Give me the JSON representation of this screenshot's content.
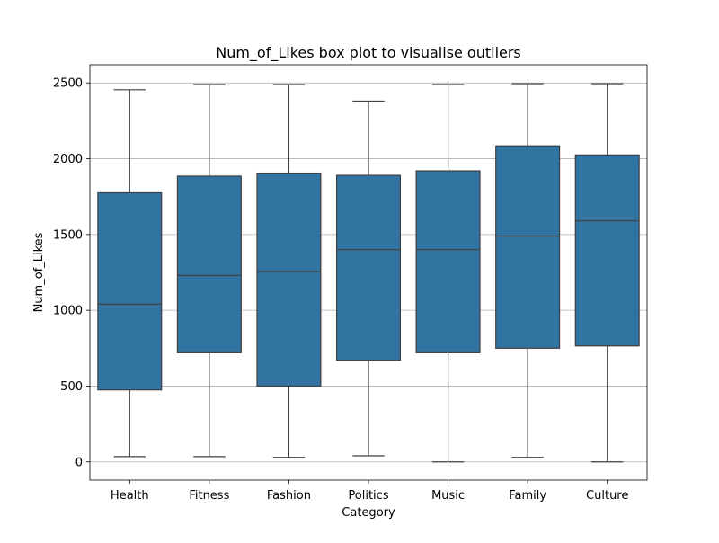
{
  "chart_data": {
    "type": "box",
    "title": "Num_of_Likes box plot to visualise outliers",
    "xlabel": "Category",
    "ylabel": "Num_of_Likes",
    "ylim": [
      -120,
      2620
    ],
    "yticks": [
      0,
      500,
      1000,
      1500,
      2000,
      2500
    ],
    "grid": "horizontal",
    "box_color": "#3274a1",
    "edge_color": "#3f3f3f",
    "grid_color": "#b0b0b0",
    "categories": [
      "Health",
      "Fitness",
      "Fashion",
      "Politics",
      "Music",
      "Family",
      "Culture"
    ],
    "boxes": [
      {
        "category": "Health",
        "whisker_low": 35,
        "q1": 475,
        "median": 1040,
        "q3": 1775,
        "whisker_high": 2455
      },
      {
        "category": "Fitness",
        "whisker_low": 35,
        "q1": 720,
        "median": 1230,
        "q3": 1885,
        "whisker_high": 2490
      },
      {
        "category": "Fashion",
        "whisker_low": 30,
        "q1": 500,
        "median": 1255,
        "q3": 1905,
        "whisker_high": 2490
      },
      {
        "category": "Politics",
        "whisker_low": 40,
        "q1": 670,
        "median": 1400,
        "q3": 1890,
        "whisker_high": 2380
      },
      {
        "category": "Music",
        "whisker_low": 0,
        "q1": 720,
        "median": 1400,
        "q3": 1920,
        "whisker_high": 2490
      },
      {
        "category": "Family",
        "whisker_low": 30,
        "q1": 750,
        "median": 1490,
        "q3": 2085,
        "whisker_high": 2495
      },
      {
        "category": "Culture",
        "whisker_low": 0,
        "q1": 765,
        "median": 1590,
        "q3": 2025,
        "whisker_high": 2495
      }
    ]
  }
}
